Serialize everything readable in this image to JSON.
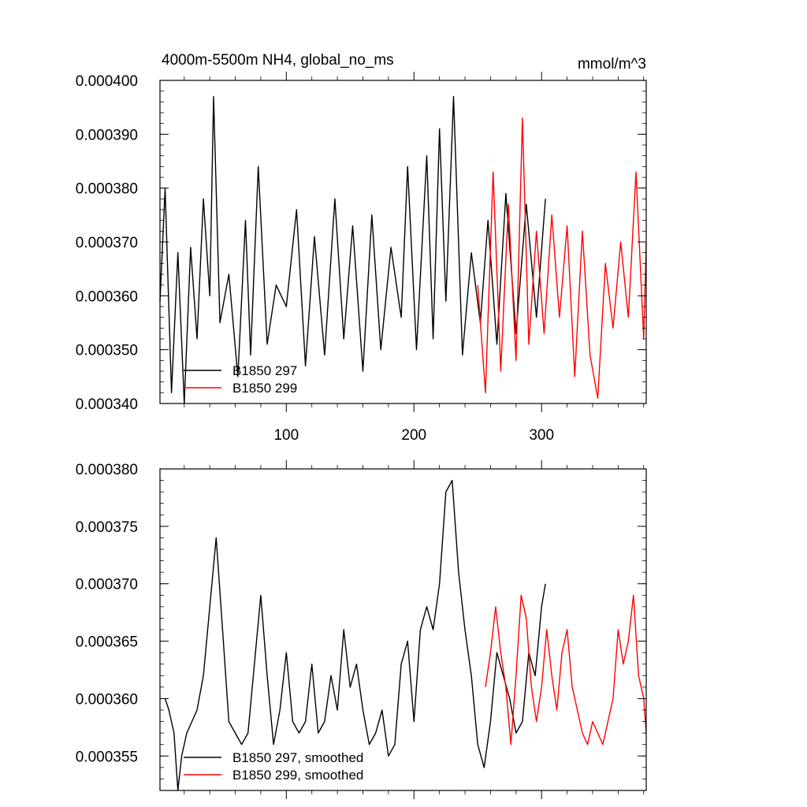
{
  "chart_data": [
    {
      "type": "line",
      "title": "4000m-5500m NH4, global_no_ms",
      "units": "mmol/m^3",
      "xlim": [
        1,
        382
      ],
      "ylim": [
        0.00034,
        0.0004
      ],
      "x_ticks": [
        100,
        200,
        300
      ],
      "x_tick_labels": [
        "100",
        "200",
        "300"
      ],
      "y_ticks": [
        0.00034,
        0.00035,
        0.00036,
        0.00037,
        0.00038,
        0.00039,
        0.0004
      ],
      "y_tick_labels": [
        "0.000340",
        "0.000350",
        "0.000360",
        "0.000370",
        "0.000380",
        "0.000390",
        "0.000400"
      ],
      "grid": false,
      "legend_position": "bottom-left",
      "series": [
        {
          "name": "B1850 297",
          "color": "#000000",
          "x": [
            1,
            5,
            10,
            15,
            20,
            25,
            30,
            35,
            40,
            43,
            48,
            55,
            62,
            68,
            72,
            78,
            85,
            92,
            100,
            108,
            115,
            122,
            130,
            138,
            145,
            152,
            160,
            167,
            174,
            182,
            190,
            195,
            202,
            210,
            215,
            220,
            225,
            231,
            238,
            245,
            252,
            258,
            265,
            272,
            280,
            288,
            296,
            303
          ],
          "y": [
            0.000359,
            0.00038,
            0.000342,
            0.000368,
            0.00034,
            0.000369,
            0.000352,
            0.000378,
            0.00036,
            0.000397,
            0.000355,
            0.000364,
            0.000345,
            0.000374,
            0.000349,
            0.000384,
            0.000351,
            0.000362,
            0.000358,
            0.000376,
            0.000347,
            0.000371,
            0.000349,
            0.000378,
            0.000352,
            0.000373,
            0.000346,
            0.000375,
            0.00035,
            0.000369,
            0.000356,
            0.000384,
            0.00035,
            0.000386,
            0.000352,
            0.000391,
            0.000359,
            0.000397,
            0.000349,
            0.000368,
            0.000355,
            0.000374,
            0.000351,
            0.000379,
            0.000353,
            0.000377,
            0.000356,
            0.000378
          ]
        },
        {
          "name": "B1850 299",
          "color": "#ff0000",
          "x": [
            250,
            256,
            262,
            268,
            274,
            280,
            285,
            290,
            296,
            302,
            308,
            314,
            320,
            326,
            332,
            338,
            344,
            350,
            356,
            362,
            368,
            374,
            380,
            382
          ],
          "y": [
            0.000362,
            0.000342,
            0.000383,
            0.000346,
            0.000377,
            0.000348,
            0.000393,
            0.000351,
            0.000372,
            0.000353,
            0.000375,
            0.000356,
            0.000373,
            0.000345,
            0.000372,
            0.000349,
            0.000341,
            0.000366,
            0.000354,
            0.00037,
            0.000356,
            0.000383,
            0.000352,
            0.00037
          ]
        }
      ]
    },
    {
      "type": "line",
      "title": "",
      "xlim": [
        1,
        382
      ],
      "ylim": [
        0.000352,
        0.00038
      ],
      "y_ticks": [
        0.000355,
        0.00036,
        0.000365,
        0.00037,
        0.000375,
        0.00038
      ],
      "y_tick_labels": [
        "0.000355",
        "0.000360",
        "0.000365",
        "0.000370",
        "0.000375",
        "0.000380"
      ],
      "x_ticks": [
        100,
        200,
        300
      ],
      "grid": false,
      "legend_position": "bottom-left",
      "series": [
        {
          "name": "B1850 297, smoothed",
          "color": "#000000",
          "x": [
            5,
            8,
            12,
            15,
            18,
            22,
            26,
            30,
            35,
            40,
            45,
            50,
            55,
            60,
            65,
            70,
            75,
            80,
            85,
            90,
            95,
            100,
            105,
            110,
            115,
            120,
            125,
            130,
            135,
            140,
            145,
            150,
            155,
            160,
            165,
            170,
            175,
            180,
            185,
            190,
            195,
            200,
            205,
            210,
            215,
            220,
            225,
            230,
            235,
            240,
            245,
            250,
            255,
            260,
            265,
            270,
            275,
            280,
            285,
            290,
            295,
            300,
            303
          ],
          "y": [
            0.00036,
            0.000359,
            0.000357,
            0.000352,
            0.000355,
            0.000357,
            0.000358,
            0.000359,
            0.000362,
            0.000368,
            0.000374,
            0.000366,
            0.000358,
            0.000357,
            0.000356,
            0.000357,
            0.000363,
            0.000369,
            0.000362,
            0.000356,
            0.000359,
            0.000364,
            0.000358,
            0.000357,
            0.000358,
            0.000363,
            0.000357,
            0.000358,
            0.000362,
            0.000359,
            0.000366,
            0.000361,
            0.000363,
            0.000359,
            0.000356,
            0.000357,
            0.000359,
            0.000355,
            0.000356,
            0.000363,
            0.000365,
            0.000358,
            0.000366,
            0.000368,
            0.000366,
            0.00037,
            0.000378,
            0.000379,
            0.000371,
            0.000366,
            0.000362,
            0.000356,
            0.000354,
            0.000358,
            0.000364,
            0.000362,
            0.00036,
            0.000357,
            0.000358,
            0.000364,
            0.000362,
            0.000368,
            0.00037
          ]
        },
        {
          "name": "B1850 299, smoothed",
          "color": "#ff0000",
          "x": [
            256,
            260,
            264,
            268,
            272,
            276,
            280,
            284,
            288,
            292,
            296,
            300,
            304,
            308,
            312,
            316,
            320,
            324,
            328,
            332,
            336,
            340,
            344,
            348,
            352,
            356,
            360,
            364,
            368,
            372,
            376,
            380,
            382
          ],
          "y": [
            0.000361,
            0.000364,
            0.000368,
            0.000364,
            0.000361,
            0.000356,
            0.000362,
            0.000369,
            0.000367,
            0.000361,
            0.000358,
            0.000361,
            0.000366,
            0.000362,
            0.000359,
            0.000364,
            0.000366,
            0.000361,
            0.000359,
            0.000357,
            0.000356,
            0.000358,
            0.000357,
            0.000356,
            0.000358,
            0.00036,
            0.000366,
            0.000363,
            0.000365,
            0.000369,
            0.000362,
            0.00036,
            0.000357
          ]
        }
      ]
    }
  ]
}
